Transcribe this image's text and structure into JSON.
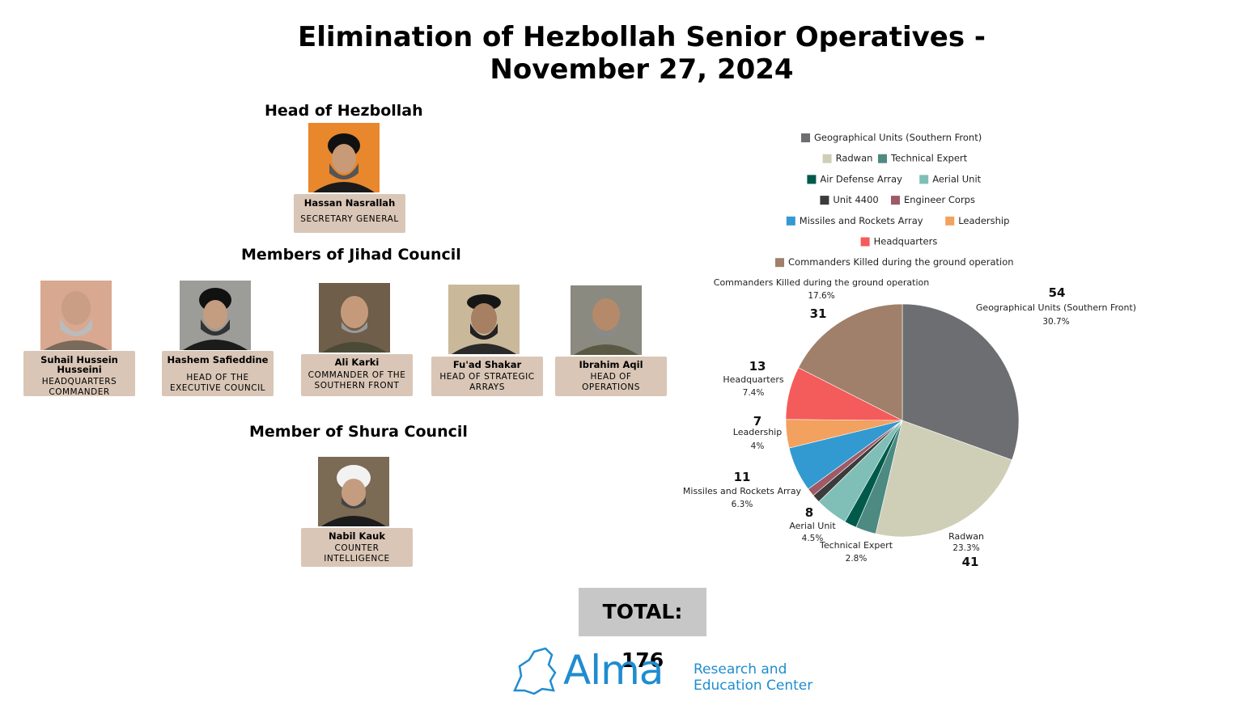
{
  "title_line1": "Elimination of Hezbollah Senior Operatives -",
  "title_line2": "November 27, 2024",
  "sections": {
    "head": "Head of Hezbollah",
    "jihad": "Members of Jihad Council",
    "shura": "Member of Shura Council"
  },
  "head_person": {
    "name": "Hassan Nasrallah",
    "role": "SECRETARY GENERAL"
  },
  "jihad_members": [
    {
      "name": "Suhail Hussein Husseini",
      "role": "HEADQUARTERS COMMANDER"
    },
    {
      "name": "Hashem Safieddine",
      "role": "HEAD OF THE EXECUTIVE COUNCIL"
    },
    {
      "name": "Ali Karki",
      "role": "COMMANDER OF THE SOUTHERN FRONT"
    },
    {
      "name": "Fu'ad Shakar",
      "role": "HEAD OF STRATEGIC ARRAYS"
    },
    {
      "name": "Ibrahim Aqil",
      "role": "HEAD OF OPERATIONS"
    }
  ],
  "shura_member": {
    "name": "Nabil Kauk",
    "role": "COUNTER INTELLIGENCE"
  },
  "total_label": "TOTAL: 176",
  "logo": {
    "word": "Alma",
    "sub_line1": "Research and",
    "sub_line2": "Education Center"
  },
  "chart_data": {
    "type": "pie",
    "start_angle_deg": 0,
    "direction": "clockwise",
    "slices": [
      {
        "label": "Geographical Units (Southern Front)",
        "value": 54,
        "percent": "30.7%",
        "color": "#6d6e71"
      },
      {
        "label": "Radwan",
        "value": 41,
        "percent": "23.3%",
        "color": "#cfcfb8"
      },
      {
        "label": "Technical Expert",
        "value": 5,
        "percent": "2.8%",
        "color": "#4c8a82"
      },
      {
        "label": "Air Defense Array",
        "value": 3,
        "percent": "",
        "color": "#005a4b"
      },
      {
        "label": "Aerial Unit",
        "value": 8,
        "percent": "4.5%",
        "color": "#7fbfb8"
      },
      {
        "label": "Unit 4400",
        "value": 2,
        "percent": "",
        "color": "#3b3b3b"
      },
      {
        "label": "Engineer Corps",
        "value": 2,
        "percent": "",
        "color": "#9e5a66"
      },
      {
        "label": "Missiles and Rockets Array",
        "value": 11,
        "percent": "6.3%",
        "color": "#3399d1"
      },
      {
        "label": "Leadership",
        "value": 7,
        "percent": "4%",
        "color": "#f2a15e"
      },
      {
        "label": "Headquarters",
        "value": 13,
        "percent": "7.4%",
        "color": "#f45b5b"
      },
      {
        "label": "Commanders Killed during the ground operation",
        "value": 31,
        "percent": "17.6%",
        "color": "#a0806a"
      }
    ],
    "legend_rows": [
      [
        "Geographical Units (Southern Front)"
      ],
      [
        "Radwan",
        "Technical Expert"
      ],
      [
        "Air Defense Array",
        "Aerial Unit"
      ],
      [
        "Unit 4400",
        "Engineer Corps"
      ],
      [
        "Missiles and Rockets Array",
        "Leadership"
      ],
      [
        "Headquarters"
      ],
      [
        "Commanders Killed during the ground operation"
      ]
    ],
    "legend_position": "top",
    "labeled_slices": [
      "Geographical Units (Southern Front)",
      "Radwan",
      "Technical Expert",
      "Aerial Unit",
      "Missiles and Rockets Array",
      "Leadership",
      "Headquarters",
      "Commanders Killed during the ground operation"
    ],
    "value_labels": [
      {
        "label": "Geographical Units (Southern Front)",
        "text": "54"
      },
      {
        "label": "Radwan",
        "text": "41"
      },
      {
        "label": "Aerial Unit",
        "text": "8"
      },
      {
        "label": "Missiles and Rockets Array",
        "text": "11"
      },
      {
        "label": "Leadership",
        "text": "7"
      },
      {
        "label": "Headquarters",
        "text": "13"
      },
      {
        "label": "Commanders Killed during the ground operation",
        "text": "31"
      }
    ]
  }
}
